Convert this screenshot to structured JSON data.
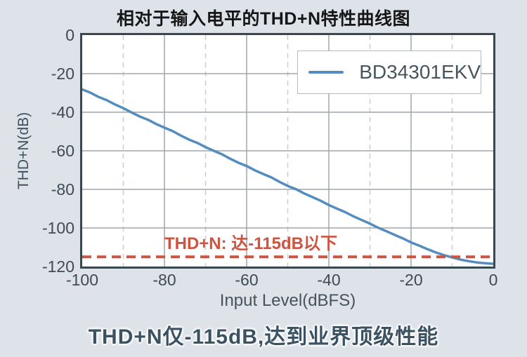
{
  "figure": {
    "title": "相对于输入电平的THD+N特性曲线图",
    "caption": "THD+N仅-115dB,达到业界顶级性能"
  },
  "chart_data": {
    "type": "line",
    "title": "相对于输入电平的THD+N特性曲线图",
    "xlabel": "Input Level(dBFS)",
    "ylabel": "THD+N(dB)",
    "xlim": [
      -100,
      0
    ],
    "ylim": [
      -120,
      0
    ],
    "x_ticks": [
      -100,
      -80,
      -60,
      -40,
      -20,
      0
    ],
    "x_minor_ticks": [
      -90,
      -70,
      -50,
      -30,
      -10
    ],
    "y_ticks": [
      0,
      -20,
      -40,
      -60,
      -80,
      -100,
      -120
    ],
    "grid": "horizontal major solid; vertical major solid; vertical minor dashed",
    "legend": {
      "position": "top-right"
    },
    "series": [
      {
        "name": "BD34301EKV",
        "color": "#548cc0",
        "x": [
          -100,
          -98,
          -96,
          -94,
          -92,
          -90,
          -88,
          -86,
          -84,
          -82,
          -80,
          -78,
          -76,
          -74,
          -72,
          -70,
          -68,
          -66,
          -64,
          -62,
          -60,
          -58,
          -56,
          -54,
          -52,
          -50,
          -48,
          -46,
          -44,
          -42,
          -40,
          -38,
          -36,
          -34,
          -32,
          -30,
          -28,
          -26,
          -24,
          -22,
          -20,
          -18,
          -16,
          -14,
          -12,
          -10,
          -8,
          -6,
          -4,
          -2,
          0
        ],
        "y": [
          -28.2,
          -29.9,
          -32.1,
          -33.8,
          -36.0,
          -37.9,
          -40.1,
          -42.2,
          -43.9,
          -46.1,
          -48.0,
          -49.8,
          -52.1,
          -54.2,
          -55.9,
          -58.1,
          -60.0,
          -61.8,
          -64.1,
          -66.2,
          -67.9,
          -70.1,
          -72.0,
          -73.8,
          -76.1,
          -78.2,
          -79.9,
          -82.1,
          -84.0,
          -85.9,
          -88.1,
          -90.0,
          -91.8,
          -94.0,
          -95.9,
          -97.8,
          -99.9,
          -101.7,
          -103.6,
          -105.4,
          -107.5,
          -109.2,
          -111.0,
          -112.7,
          -114.1,
          -115.3,
          -116.4,
          -117.2,
          -117.9,
          -118.3,
          -118.6
        ]
      }
    ],
    "annotations": [
      {
        "type": "hline",
        "y": -115,
        "style": "dashed",
        "color": "#cf5340",
        "label": "THD+N: 达-115dB以下"
      }
    ],
    "layout_colors": {
      "grid_major": "#9fa6ac",
      "grid_minor": "#c9ced3",
      "plot_border": "#39484f",
      "tick_text": "#3e4b55"
    }
  }
}
